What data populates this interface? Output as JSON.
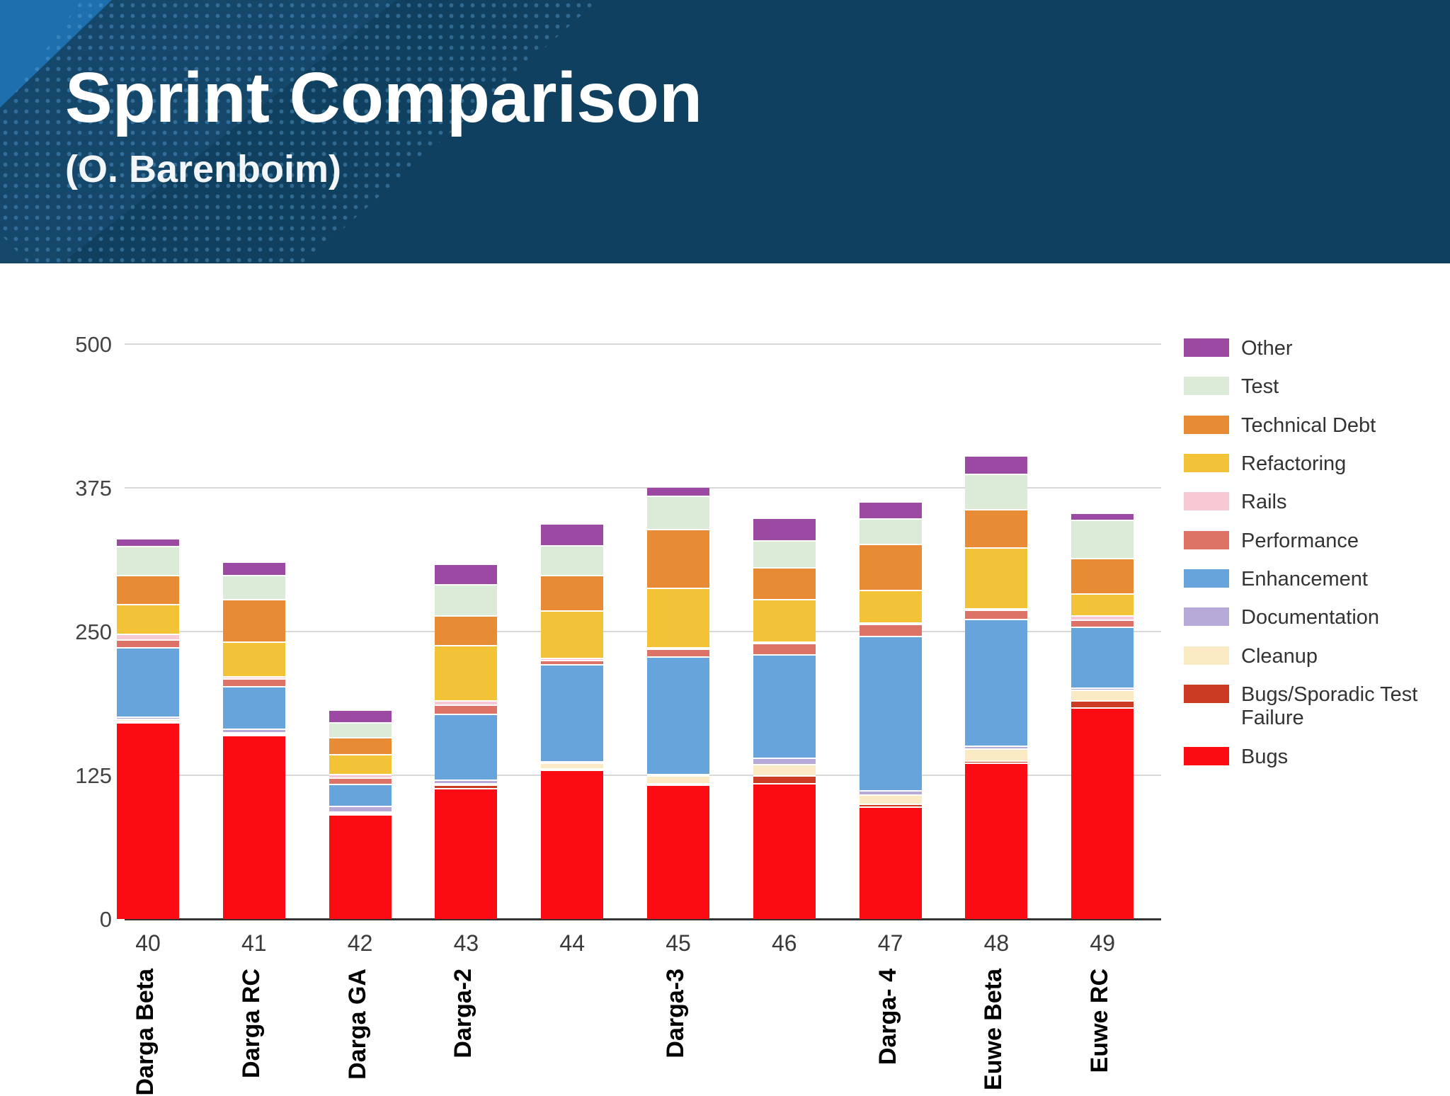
{
  "header": {
    "title": "Sprint Comparison",
    "subtitle": "(O. Barenboim)"
  },
  "colors": {
    "header_background": "#10405f",
    "header_triangle_bright": "#1d6fae",
    "header_triangle_mid": "#15476b",
    "gridline": "#d9d9d9",
    "axis_line": "#333333",
    "axis_text": "#434343"
  },
  "chart_data": {
    "type": "bar",
    "stacked": true,
    "title": "Sprint Comparison",
    "xlabel": "",
    "ylabel": "",
    "ylim": [
      0,
      500
    ],
    "yticks": [
      0,
      125,
      250,
      375,
      500
    ],
    "grid": true,
    "legend_position": "right",
    "categories": [
      "40",
      "41",
      "42",
      "43",
      "44",
      "45",
      "46",
      "47",
      "48",
      "49"
    ],
    "category_sublabels": [
      "Darga Beta",
      "Darga RC",
      "Darga GA",
      "Darga-2",
      "",
      "Darga-3",
      "",
      "Darga- 4",
      "Euwe Beta",
      "Euwe RC"
    ],
    "series": [
      {
        "name": "Bugs",
        "color": "#FB0B12",
        "values": [
          170,
          159,
          90,
          113,
          129,
          116,
          117,
          97,
          135,
          183
        ]
      },
      {
        "name": "Bugs/Sporadic Test Failure",
        "color": "#CB3A22",
        "values": [
          1,
          1,
          1,
          3,
          1,
          1,
          7,
          2,
          2,
          6
        ]
      },
      {
        "name": "Cleanup",
        "color": "#FAEBC4",
        "values": [
          2,
          1,
          1,
          1,
          5,
          7,
          10,
          8,
          10,
          9
        ]
      },
      {
        "name": "Documentation",
        "color": "#B7AAD8",
        "values": [
          2,
          3,
          5,
          3,
          1,
          1,
          5,
          4,
          3,
          2
        ]
      },
      {
        "name": "Enhancement",
        "color": "#68A4DC",
        "values": [
          60,
          37,
          19,
          57,
          84,
          102,
          90,
          134,
          110,
          53
        ]
      },
      {
        "name": "Performance",
        "color": "#DC7366",
        "values": [
          7,
          7,
          6,
          8,
          4,
          7,
          10,
          11,
          8,
          6
        ]
      },
      {
        "name": "Rails",
        "color": "#F6C9D3",
        "values": [
          5,
          2,
          3,
          4,
          2,
          1,
          1,
          1,
          1,
          4
        ]
      },
      {
        "name": "Refactoring",
        "color": "#F2C337",
        "values": [
          26,
          30,
          17,
          48,
          41,
          52,
          37,
          28,
          53,
          19
        ]
      },
      {
        "name": "Technical Debt",
        "color": "#E78C35",
        "values": [
          25,
          37,
          15,
          26,
          31,
          51,
          28,
          40,
          33,
          31
        ]
      },
      {
        "name": "Test",
        "color": "#DCEBD8",
        "values": [
          25,
          21,
          13,
          27,
          26,
          29,
          23,
          22,
          31,
          33
        ]
      },
      {
        "name": "Other",
        "color": "#9B49A3",
        "values": [
          7,
          12,
          11,
          18,
          19,
          8,
          20,
          15,
          16,
          6
        ]
      }
    ],
    "totals": [
      330,
      310,
      181,
      308,
      343,
      375,
      348,
      362,
      402,
      352
    ]
  }
}
